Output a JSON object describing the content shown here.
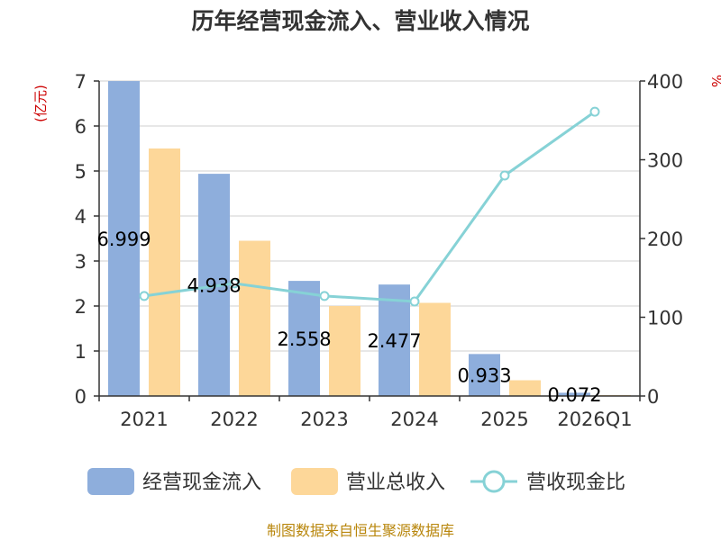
{
  "chart_data": {
    "type": "bar",
    "title": "历年经营现金流入、营业收入情况",
    "categories": [
      "2021",
      "2022",
      "2023",
      "2024",
      "2025",
      "2026Q1"
    ],
    "y_left": {
      "unit": "(亿元)",
      "ylim": [
        0,
        7
      ],
      "ticks": [
        "0",
        "1",
        "2",
        "3",
        "4",
        "5",
        "6",
        "7"
      ]
    },
    "y_right": {
      "unit": "%",
      "ylim": [
        0,
        400
      ],
      "ticks": [
        "0",
        "100",
        "200",
        "300",
        "400"
      ]
    },
    "grid": true,
    "legend_position": "bottom",
    "series": [
      {
        "name": "经营现金流入",
        "kind": "bar",
        "axis": "left",
        "color": "#8eaedc",
        "values": [
          6.999,
          4.938,
          2.558,
          2.477,
          0.933,
          0.072
        ],
        "labels": [
          "6.999",
          "4.938",
          "2.558",
          "2.477",
          "0.933",
          "0.072"
        ]
      },
      {
        "name": "营业总收入",
        "kind": "bar",
        "axis": "left",
        "color": "#fdd799",
        "values": [
          5.5,
          3.45,
          2.0,
          2.07,
          0.35,
          0.02
        ]
      },
      {
        "name": "营收现金比",
        "kind": "line",
        "axis": "right",
        "color": "#86d2d6",
        "values": [
          127,
          143,
          127,
          120,
          280,
          361
        ]
      }
    ]
  },
  "source": "制图数据来自恒生聚源数据库"
}
